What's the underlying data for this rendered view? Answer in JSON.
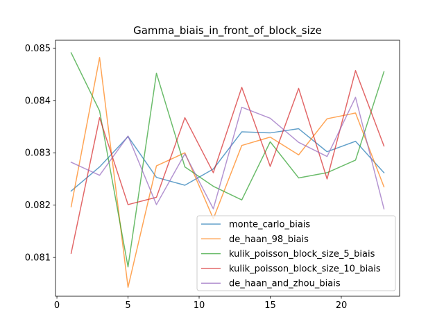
{
  "chart_data": {
    "type": "line",
    "title": "Gamma_biais_in_front_of_block_size",
    "xlabel": "",
    "ylabel": "",
    "x": [
      1,
      3,
      5,
      7,
      9,
      11,
      13,
      15,
      17,
      19,
      21,
      23
    ],
    "xlim": [
      -0.1,
      24.1
    ],
    "ylim": [
      0.08026,
      0.08515
    ],
    "xticks": [
      0,
      5,
      10,
      15,
      20
    ],
    "xtick_labels": [
      "0",
      "5",
      "10",
      "15",
      "20"
    ],
    "yticks": [
      0.081,
      0.082,
      0.083,
      0.084,
      0.085
    ],
    "ytick_labels": [
      "0.081",
      "0.082",
      "0.083",
      "0.084",
      "0.085"
    ],
    "grid": false,
    "legend_position": "lower-right",
    "series": [
      {
        "name": "monte_carlo_biais",
        "color": "#1f77b4",
        "values": [
          0.08227,
          0.08273,
          0.08331,
          0.08253,
          0.08238,
          0.08269,
          0.0834,
          0.08338,
          0.08346,
          0.08302,
          0.08322,
          0.08262
        ]
      },
      {
        "name": "de_haan_98_biais",
        "color": "#ff7f0e",
        "values": [
          0.08197,
          0.08482,
          0.08043,
          0.08275,
          0.083,
          0.08174,
          0.08314,
          0.0833,
          0.08296,
          0.08365,
          0.08376,
          0.08235
        ]
      },
      {
        "name": "kulik_poisson_block_size_5_biais",
        "color": "#2ca02c",
        "values": [
          0.08491,
          0.0838,
          0.08082,
          0.08452,
          0.08273,
          0.08236,
          0.0821,
          0.08321,
          0.08252,
          0.08262,
          0.08286,
          0.08455
        ]
      },
      {
        "name": "kulik_poisson_block_size_10_biais",
        "color": "#d62728",
        "values": [
          0.08108,
          0.08367,
          0.08201,
          0.08215,
          0.08367,
          0.08262,
          0.08425,
          0.08274,
          0.08423,
          0.0825,
          0.08457,
          0.08313
        ]
      },
      {
        "name": "de_haan_and_zhou_biais",
        "color": "#9467bd",
        "values": [
          0.08282,
          0.08257,
          0.08332,
          0.08201,
          0.08298,
          0.08193,
          0.08387,
          0.08366,
          0.0832,
          0.08293,
          0.08406,
          0.08193
        ]
      }
    ]
  }
}
